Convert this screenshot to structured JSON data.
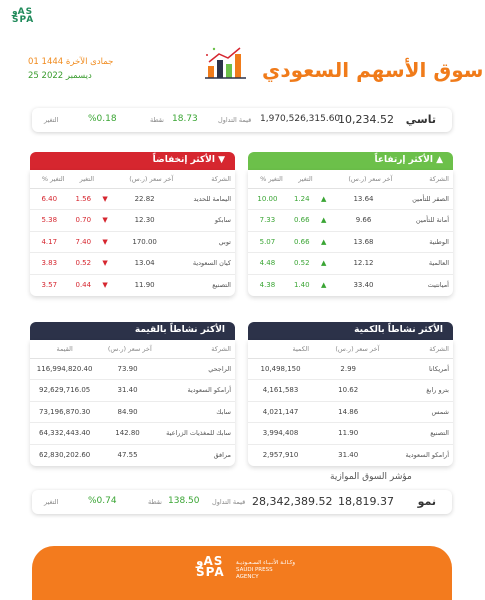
{
  "header": {
    "logo_line1": "وAS",
    "logo_line2": "SPA",
    "hijri_date": "01 جمادى الآخرة 1444",
    "greg_date": "25 ديسمبر 2022",
    "title": "سوق الأسهم السعودي",
    "icon": "bar-chart-icon"
  },
  "tasi": {
    "name": "تاسي",
    "value": "10,234.52",
    "turnover_value": "1,970,526,315.60",
    "turnover_label": "قيمة التداول",
    "points": "18.73",
    "points_label": "نقطة",
    "change": "%0.18",
    "change_label": "التغير"
  },
  "gainers": {
    "title": "الأكثر إرتفاعاً",
    "headers": [
      "الشركة",
      "آخر سعر (ر.س)",
      "التغير",
      "التغير %"
    ],
    "rows": [
      {
        "name": "الصقر للتأمين",
        "price": "13.64",
        "change": "1.24",
        "pct": "10.00"
      },
      {
        "name": "أمانة للتأمين",
        "price": "9.66",
        "change": "0.66",
        "pct": "7.33"
      },
      {
        "name": "الوطنية",
        "price": "13.68",
        "change": "0.66",
        "pct": "5.07"
      },
      {
        "name": "العالمية",
        "price": "12.12",
        "change": "0.52",
        "pct": "4.48"
      },
      {
        "name": "أميانتيت",
        "price": "33.40",
        "change": "1.40",
        "pct": "4.38"
      }
    ]
  },
  "losers": {
    "title": "الأكثر إنخفاضاً",
    "headers": [
      "الشركة",
      "آخر سعر (ر.س)",
      "التغير",
      "التغير %"
    ],
    "rows": [
      {
        "name": "اليمامة للحديد",
        "price": "22.82",
        "change": "1.56",
        "pct": "6.40"
      },
      {
        "name": "سابكو",
        "price": "12.30",
        "change": "0.70",
        "pct": "5.38"
      },
      {
        "name": "توبي",
        "price": "170.00",
        "change": "7.40",
        "pct": "4.17"
      },
      {
        "name": "كيان السعودية",
        "price": "13.04",
        "change": "0.52",
        "pct": "3.83"
      },
      {
        "name": "التصنيع",
        "price": "11.90",
        "change": "0.44",
        "pct": "3.57"
      }
    ]
  },
  "active_value": {
    "title": "الأكثر نشاطاً بالقيمة",
    "headers": [
      "الشركة",
      "آخر سعر (ر.س)",
      "القيمة"
    ],
    "rows": [
      {
        "name": "الراجحي",
        "price": "73.90",
        "value": "116,994,820.40"
      },
      {
        "name": "أرامكو السعودية",
        "price": "31.40",
        "value": "92,629,716.05"
      },
      {
        "name": "سابك",
        "price": "84.90",
        "value": "73,196,870.30"
      },
      {
        "name": "سابك للمغذيات الزراعية",
        "price": "142.80",
        "value": "64,332,443.40"
      },
      {
        "name": "مرافق",
        "price": "47.55",
        "value": "62,830,202.60"
      }
    ]
  },
  "active_volume": {
    "title": "الأكثر نشاطاً بالكمية",
    "headers": [
      "الشركة",
      "آخر سعر (ر.س)",
      "الكمية"
    ],
    "rows": [
      {
        "name": "أمريكانا",
        "price": "2.99",
        "volume": "10,498,150"
      },
      {
        "name": "بترو رابغ",
        "price": "10.62",
        "volume": "4,161,583"
      },
      {
        "name": "شمس",
        "price": "14.86",
        "volume": "4,021,147"
      },
      {
        "name": "التصنيع",
        "price": "11.90",
        "volume": "3,994,408"
      },
      {
        "name": "أرامكو السعودية",
        "price": "31.40",
        "volume": "2,957,910"
      }
    ]
  },
  "parallel": {
    "title": "مؤشر السوق الموازية",
    "name": "نمو",
    "value": "18,819.37",
    "turnover_value": "28,342,389.52",
    "turnover_label": "قيمة التداول",
    "points": "138.50",
    "points_label": "نقطة",
    "change": "%0.74",
    "change_label": "التغير"
  },
  "footer": {
    "logo_line1": "وAS",
    "logo_line2": "SPA",
    "agency_ar": "وكـالـة الأنـبـاء السـعـوديـة",
    "agency_en1": "SAUDI PRESS",
    "agency_en2": "AGENCY"
  },
  "colors": {
    "green": "#6cc04a",
    "red": "#d6262f",
    "navy": "#2c3249",
    "orange": "#f37b1e"
  }
}
